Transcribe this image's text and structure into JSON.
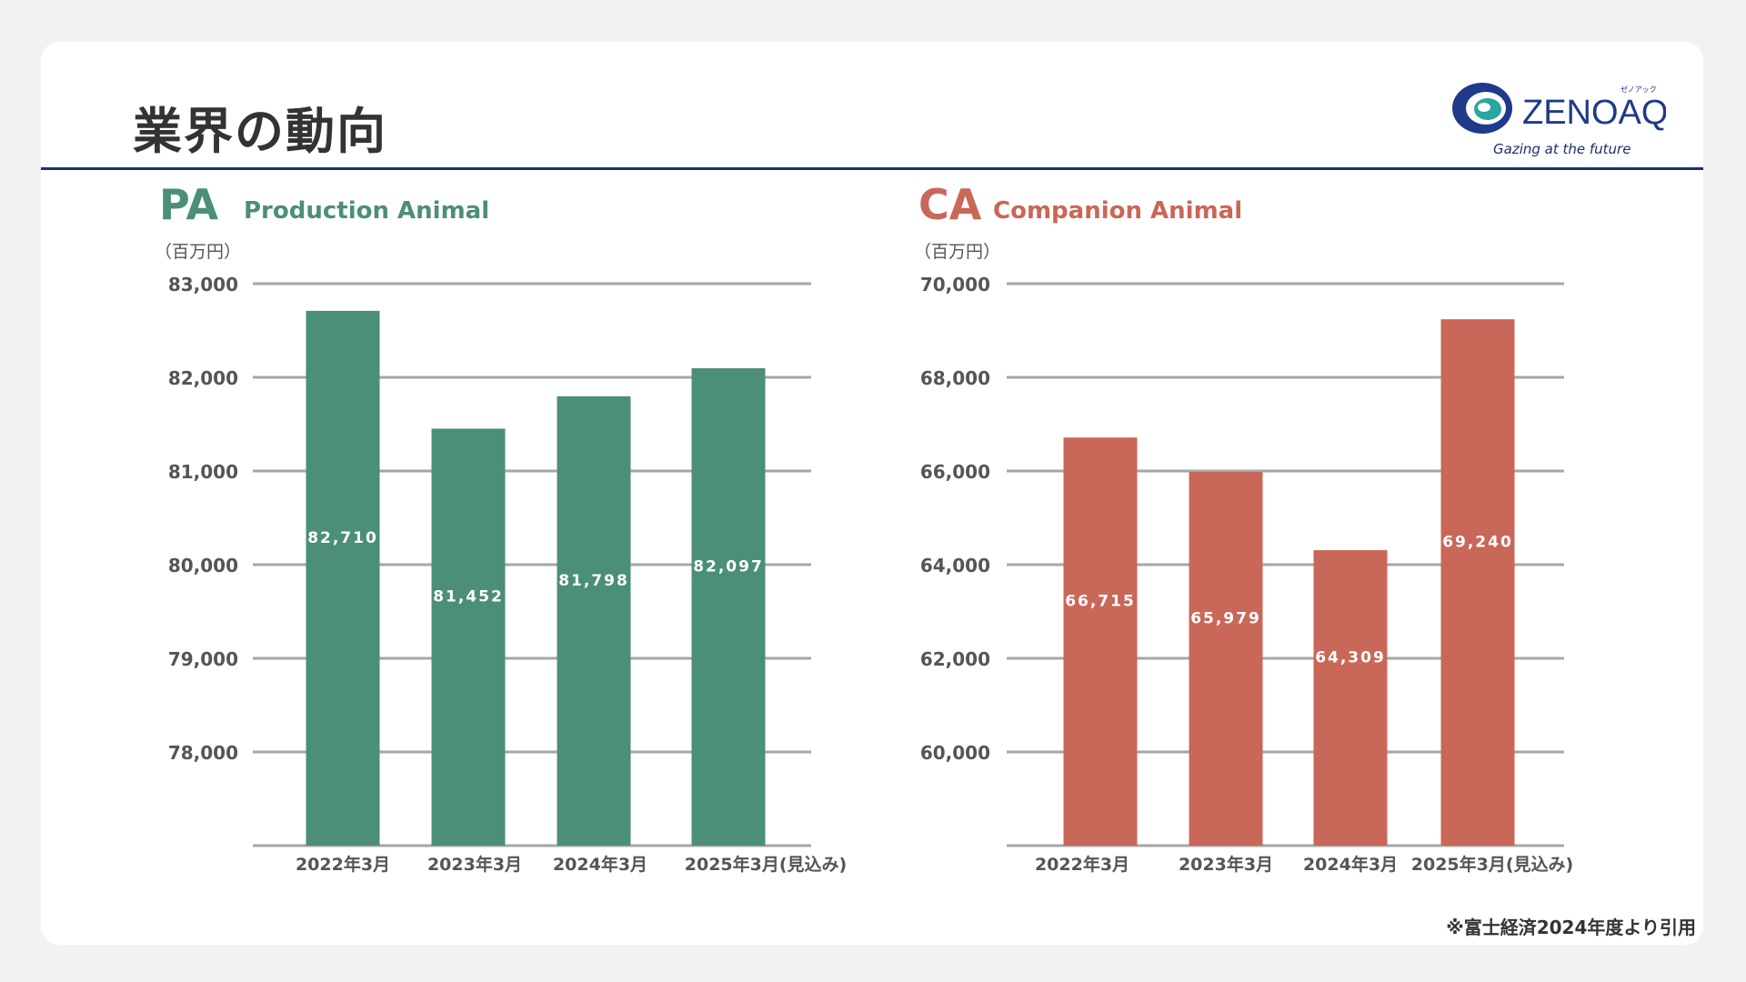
{
  "header": {
    "title": "業界の動向",
    "logo_text": "ZENOAQ",
    "logo_kana": "ゼノアック",
    "logo_tagline": "Gazing at the future"
  },
  "footnote": "※富士経済2024年度より引用",
  "colors": {
    "pa": "#4b8e79",
    "ca": "#c96758",
    "rule": "#1f2f6b",
    "logo_blue": "#1f3a8a",
    "logo_teal": "#2aa6a0"
  },
  "chart_data": [
    {
      "type": "bar",
      "code": "PA",
      "title": "Production Animal",
      "unit_label": "（百万円）",
      "categories": [
        "2022年3月",
        "2023年3月",
        "2024年3月",
        "2025年3月(見込み)"
      ],
      "values": [
        82710,
        81452,
        81798,
        82097
      ],
      "value_labels": [
        "82,710",
        "81,452",
        "81,798",
        "82,097"
      ],
      "yticks": [
        78000,
        79000,
        80000,
        81000,
        82000,
        83000
      ],
      "ytick_labels": [
        "78,000",
        "79,000",
        "80,000",
        "81,000",
        "82,000",
        "83,000"
      ],
      "ylim": [
        77000,
        83000
      ],
      "grid": true
    },
    {
      "type": "bar",
      "code": "CA",
      "title": "Companion Animal",
      "unit_label": "（百万円）",
      "categories": [
        "2022年3月",
        "2023年3月",
        "2024年3月",
        "2025年3月(見込み)"
      ],
      "values": [
        66715,
        65979,
        64309,
        69240
      ],
      "value_labels": [
        "66,715",
        "65,979",
        "64,309",
        "69,240"
      ],
      "yticks": [
        60000,
        62000,
        64000,
        66000,
        68000,
        70000
      ],
      "ytick_labels": [
        "60,000",
        "62,000",
        "64,000",
        "66,000",
        "68,000",
        "70,000"
      ],
      "ylim": [
        58000,
        70000
      ],
      "grid": true
    }
  ]
}
